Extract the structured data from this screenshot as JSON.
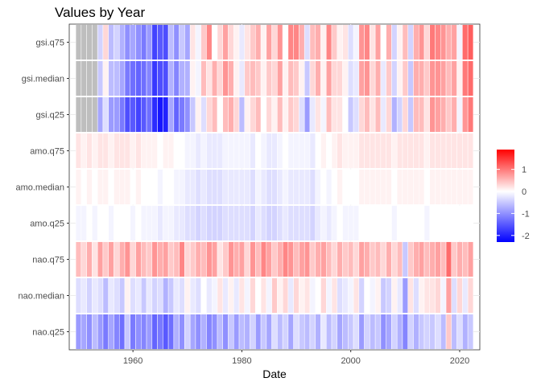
{
  "chart_data": {
    "type": "heatmap",
    "title": "Values by Year",
    "xlabel": "Date",
    "ylabel": "",
    "x_ticks": [
      1960,
      1980,
      2000,
      2020
    ],
    "xlim": [
      1948.3,
      2023.7
    ],
    "y_categories": [
      "gsi.q75",
      "gsi.median",
      "gsi.q25",
      "amo.q75",
      "amo.median",
      "amo.q25",
      "nao.q75",
      "nao.median",
      "nao.q25"
    ],
    "years": [
      1950,
      1951,
      1952,
      1953,
      1954,
      1955,
      1956,
      1957,
      1958,
      1959,
      1960,
      1961,
      1962,
      1963,
      1964,
      1965,
      1966,
      1967,
      1968,
      1969,
      1970,
      1971,
      1972,
      1973,
      1974,
      1975,
      1976,
      1977,
      1978,
      1979,
      1980,
      1981,
      1982,
      1983,
      1984,
      1985,
      1986,
      1987,
      1988,
      1989,
      1990,
      1991,
      1992,
      1993,
      1994,
      1995,
      1996,
      1997,
      1998,
      1999,
      2000,
      2001,
      2002,
      2003,
      2004,
      2005,
      2006,
      2007,
      2008,
      2009,
      2010,
      2011,
      2012,
      2013,
      2014,
      2015,
      2016,
      2017,
      2018,
      2019,
      2020,
      2021,
      2022
    ],
    "color_scale": {
      "low": "#0000ff",
      "mid": "#ffffff",
      "high": "#ff0000",
      "na": "#bebebe",
      "limits": [
        -2.3,
        1.9
      ]
    },
    "legend": {
      "ticks": [
        1,
        0,
        -1,
        -2
      ],
      "placement": "right"
    },
    "grid": true,
    "values": {
      "gsi.q75": [
        null,
        null,
        null,
        null,
        -0.4,
        0.3,
        -0.6,
        -0.4,
        -0.7,
        -1.0,
        -0.8,
        -1.0,
        -1.2,
        -0.9,
        -1.7,
        -1.5,
        -1.6,
        -0.6,
        -1.0,
        -0.5,
        -0.8,
        0.2,
        -0.1,
        0.4,
        0.9,
        0.0,
        0.3,
        0.7,
        0.3,
        0.1,
        -0.2,
        0.2,
        0.4,
        0.6,
        0.1,
        0.7,
        0.3,
        0.8,
        0.0,
        0.9,
        0.9,
        0.6,
        -0.3,
        0.5,
        0.6,
        0.1,
        0.9,
        0.4,
        0.1,
        0.2,
        -0.3,
        -0.1,
        0.8,
        0.9,
        0.2,
        0.7,
        0.0,
        0.6,
        -0.4,
        0.1,
        0.5,
        -0.4,
        0.6,
        0.8,
        0.3,
        1.0,
        0.9,
        0.8,
        0.6,
        0.7,
        -0.1,
        1.1,
        1.2
      ],
      "gsi.median": [
        null,
        null,
        null,
        null,
        -0.5,
        0.1,
        -0.6,
        -0.6,
        -0.8,
        -1.2,
        -1.3,
        -1.4,
        -1.3,
        -1.1,
        -1.8,
        -1.6,
        -1.6,
        -0.7,
        -1.1,
        -0.7,
        -0.7,
        0.1,
        -0.1,
        0.5,
        0.2,
        0.6,
        0.3,
        0.8,
        0.6,
        0.1,
        -0.2,
        0.4,
        0.5,
        0.4,
        0.1,
        0.4,
        0.3,
        0.7,
        0.1,
        0.5,
        0.4,
        0.1,
        -0.5,
        0.3,
        0.6,
        0.1,
        0.7,
        0.3,
        0.3,
        0.1,
        -0.3,
        -0.2,
        0.7,
        0.8,
        0.3,
        0.6,
        -0.2,
        0.4,
        -0.4,
        0.1,
        0.4,
        -0.5,
        0.6,
        0.6,
        0.4,
        0.8,
        0.8,
        0.7,
        0.5,
        0.7,
        0.1,
        1.0,
        1.1
      ],
      "gsi.q25": [
        null,
        null,
        null,
        null,
        -0.8,
        -0.3,
        -0.9,
        -0.9,
        -1.2,
        -1.6,
        -1.5,
        -1.7,
        -1.5,
        -1.3,
        -1.9,
        -2.1,
        -2.0,
        -0.8,
        -1.4,
        -1.2,
        -1.0,
        -0.5,
        0.1,
        -0.3,
        0.3,
        0.5,
        0.0,
        0.5,
        0.6,
        0.3,
        -0.6,
        0.1,
        0.3,
        0.5,
        0.0,
        0.3,
        0.1,
        0.5,
        0.1,
        0.4,
        0.3,
        -0.3,
        -0.9,
        -0.2,
        0.2,
        -0.1,
        0.5,
        0.2,
        0.2,
        0.0,
        -0.5,
        -0.3,
        0.3,
        0.5,
        0.2,
        0.5,
        -0.2,
        0.3,
        -0.7,
        -0.4,
        0.3,
        -0.5,
        0.5,
        0.5,
        0.2,
        0.8,
        0.7,
        0.6,
        0.4,
        0.6,
        -0.1,
        0.8,
        1.0
      ],
      "amo.q75": [
        0.2,
        0.1,
        0.2,
        0.1,
        0.2,
        0.2,
        0.1,
        0.2,
        0.2,
        0.2,
        0.1,
        0.2,
        0.1,
        0.1,
        0.1,
        0.0,
        0.1,
        0.1,
        0.0,
        0.0,
        -0.1,
        -0.1,
        -0.2,
        -0.1,
        -0.2,
        -0.2,
        -0.2,
        -0.1,
        -0.1,
        -0.1,
        -0.1,
        -0.1,
        -0.2,
        0.0,
        -0.1,
        -0.2,
        -0.2,
        -0.1,
        0.0,
        -0.1,
        -0.1,
        -0.1,
        -0.1,
        -0.2,
        0.0,
        0.1,
        0.0,
        0.1,
        0.2,
        0.1,
        0.1,
        0.1,
        0.2,
        0.2,
        0.2,
        0.2,
        0.2,
        0.2,
        0.1,
        0.2,
        0.2,
        0.2,
        0.2,
        0.2,
        0.1,
        0.2,
        0.2,
        0.2,
        0.2,
        0.2,
        0.2,
        0.2,
        0.2
      ],
      "amo.median": [
        0.1,
        0.0,
        0.1,
        0.0,
        0.1,
        0.1,
        0.0,
        0.1,
        0.1,
        0.1,
        0.0,
        0.1,
        0.0,
        0.0,
        0.0,
        -0.1,
        0.0,
        0.0,
        -0.1,
        -0.1,
        -0.2,
        -0.2,
        -0.3,
        -0.2,
        -0.3,
        -0.3,
        -0.3,
        -0.2,
        -0.2,
        -0.2,
        -0.2,
        -0.2,
        -0.3,
        -0.1,
        -0.2,
        -0.3,
        -0.3,
        -0.2,
        -0.1,
        -0.2,
        -0.2,
        -0.2,
        -0.2,
        -0.3,
        -0.1,
        0.0,
        -0.1,
        0.0,
        0.1,
        0.0,
        0.0,
        0.0,
        0.1,
        0.1,
        0.1,
        0.1,
        0.1,
        0.1,
        0.0,
        0.1,
        0.1,
        0.1,
        0.1,
        0.1,
        0.0,
        0.1,
        0.1,
        0.1,
        0.1,
        0.1,
        0.1,
        0.1,
        0.1
      ],
      "amo.q25": [
        -0.1,
        -0.1,
        0.0,
        -0.1,
        0.0,
        0.0,
        -0.1,
        0.0,
        0.0,
        0.0,
        -0.1,
        0.0,
        -0.1,
        -0.1,
        -0.1,
        -0.2,
        -0.1,
        -0.1,
        -0.2,
        -0.2,
        -0.3,
        -0.3,
        -0.4,
        -0.3,
        -0.4,
        -0.4,
        -0.4,
        -0.3,
        -0.3,
        -0.3,
        -0.3,
        -0.3,
        -0.4,
        -0.2,
        -0.3,
        -0.4,
        -0.4,
        -0.3,
        -0.2,
        -0.3,
        -0.3,
        -0.3,
        -0.3,
        -0.4,
        -0.2,
        -0.1,
        -0.2,
        -0.1,
        0.0,
        -0.1,
        -0.1,
        -0.1,
        0.0,
        0.0,
        0.0,
        0.0,
        0.0,
        0.0,
        -0.1,
        0.0,
        0.0,
        0.0,
        0.0,
        0.0,
        -0.1,
        0.0,
        0.0,
        0.0,
        0.0,
        0.0,
        0.0,
        0.0,
        0.0
      ],
      "nao.q75": [
        0.5,
        0.3,
        0.6,
        0.2,
        0.7,
        0.4,
        0.7,
        0.3,
        0.6,
        0.8,
        0.3,
        0.7,
        0.5,
        0.4,
        0.8,
        0.6,
        0.7,
        0.4,
        0.5,
        0.9,
        0.3,
        0.4,
        0.6,
        0.5,
        0.8,
        0.7,
        0.2,
        0.4,
        0.8,
        0.6,
        0.7,
        0.3,
        0.8,
        0.5,
        0.9,
        0.7,
        0.4,
        0.6,
        0.9,
        0.8,
        0.5,
        0.7,
        0.8,
        0.4,
        0.6,
        0.7,
        0.5,
        0.3,
        0.6,
        0.4,
        0.5,
        0.3,
        0.7,
        0.6,
        0.4,
        0.5,
        0.3,
        0.6,
        0.3,
        0.5,
        -0.5,
        0.4,
        0.6,
        0.7,
        0.5,
        0.6,
        0.7,
        0.5,
        1.1,
        0.4,
        0.6,
        0.5,
        0.7
      ],
      "nao.median": [
        -0.3,
        -0.2,
        -0.4,
        -0.2,
        -0.3,
        -0.6,
        -0.2,
        -0.3,
        -0.5,
        0.1,
        -0.3,
        -0.2,
        -0.5,
        -0.2,
        -0.4,
        -0.3,
        -0.7,
        -0.5,
        -0.2,
        -0.3,
        0.1,
        -0.2,
        -0.3,
        0.0,
        -0.2,
        -0.1,
        0.2,
        -0.2,
        0.1,
        -0.2,
        0.2,
        -0.1,
        0.3,
        0.0,
        0.2,
        -0.1,
        0.4,
        0.1,
        0.3,
        -0.2,
        0.3,
        0.1,
        0.2,
        -0.1,
        0.0,
        0.3,
        -0.1,
        0.2,
        -0.3,
        -0.2,
        -0.1,
        0.2,
        -0.4,
        0.0,
        -0.1,
        0.1,
        -0.5,
        -0.4,
        0.1,
        -0.2,
        -0.9,
        0.2,
        -0.3,
        0.1,
        0.2,
        0.2,
        0.3,
        -0.1,
        0.7,
        -0.3,
        0.3,
        -0.2,
        0.3
      ],
      "nao.q25": [
        -0.9,
        -0.8,
        -1.0,
        -0.6,
        -0.9,
        -1.2,
        -0.8,
        -1.1,
        -1.3,
        -0.5,
        -1.2,
        -1.0,
        -1.1,
        -0.9,
        -1.4,
        -1.2,
        -1.5,
        -1.3,
        -0.7,
        -1.0,
        -0.4,
        -0.8,
        -1.0,
        -0.7,
        -1.1,
        -1.0,
        -0.6,
        -1.0,
        -0.5,
        -0.9,
        -0.6,
        -0.7,
        -0.4,
        -0.9,
        -0.5,
        -0.8,
        -0.3,
        -0.6,
        -0.4,
        -0.8,
        -0.3,
        -0.5,
        -0.6,
        -0.4,
        -0.7,
        -0.2,
        -0.6,
        -0.4,
        -0.8,
        -0.6,
        -0.5,
        -0.3,
        -0.9,
        -0.4,
        -0.6,
        -0.5,
        -1.0,
        -0.8,
        -0.4,
        -0.7,
        -1.1,
        -0.4,
        -0.7,
        -0.5,
        -0.4,
        -0.5,
        -0.3,
        -0.6,
        0.4,
        -0.6,
        -0.3,
        -0.7,
        -0.5
      ]
    }
  }
}
